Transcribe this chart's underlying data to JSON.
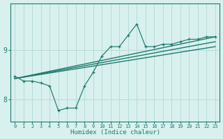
{
  "xlabel": "Humidex (Indice chaleur)",
  "x_ticks": [
    0,
    1,
    2,
    3,
    4,
    5,
    6,
    7,
    8,
    9,
    10,
    11,
    12,
    13,
    14,
    15,
    16,
    17,
    18,
    19,
    20,
    21,
    22,
    23
  ],
  "y_ticks": [
    8,
    9
  ],
  "xlim": [
    -0.5,
    23.5
  ],
  "ylim": [
    7.55,
    9.95
  ],
  "bg_color": "#d8f0ee",
  "line_color": "#1e7a6d",
  "grid_color": "#b8dbd8",
  "curve_x": [
    0,
    1,
    2,
    3,
    4,
    5,
    6,
    7,
    8,
    9,
    10,
    11,
    12,
    13,
    14,
    15,
    16,
    17,
    18,
    19,
    20,
    21,
    22,
    23
  ],
  "curve_y": [
    8.47,
    8.37,
    8.37,
    8.33,
    8.27,
    7.77,
    7.82,
    7.82,
    8.27,
    8.55,
    8.88,
    9.07,
    9.07,
    9.3,
    9.53,
    9.07,
    9.07,
    9.12,
    9.12,
    9.17,
    9.22,
    9.22,
    9.27,
    9.27
  ],
  "trend1_x": [
    0,
    23
  ],
  "trend1_y": [
    8.42,
    9.27
  ],
  "trend2_x": [
    0,
    23
  ],
  "trend2_y": [
    8.42,
    9.17
  ],
  "trend3_x": [
    0,
    23
  ],
  "trend3_y": [
    8.42,
    9.07
  ]
}
